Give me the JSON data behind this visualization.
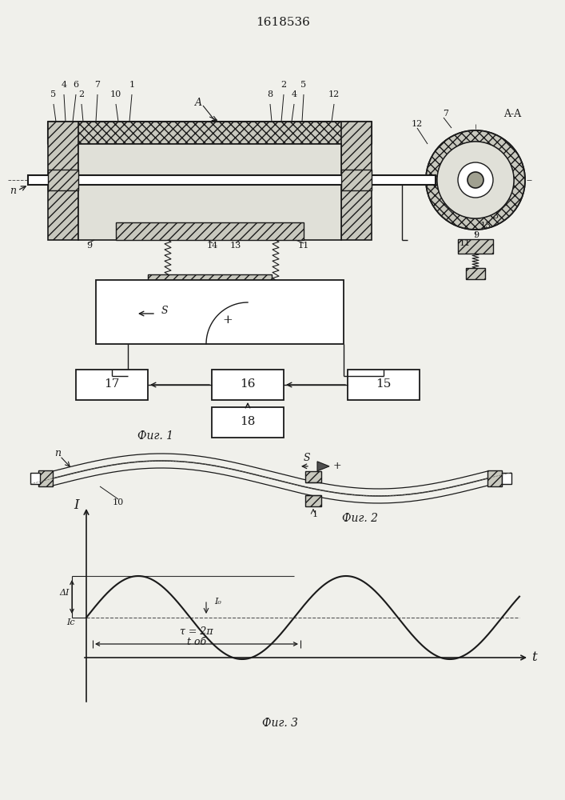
{
  "title": "1618536",
  "bg_color": "#f0f0eb",
  "line_color": "#1a1a1a",
  "fig1_label": "Фиг. 1",
  "fig2_label": "Фиг. 2",
  "fig3_label": "Фиг. 3",
  "hatch_color": "#888880",
  "gray_fill": "#c8c8be",
  "light_gray": "#e0e0d8"
}
